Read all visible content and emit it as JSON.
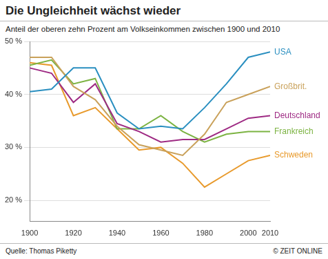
{
  "chart_data": {
    "type": "line",
    "title": "Die Ungleichheit wächst wieder",
    "subtitle": "Anteil der oberen zehn Prozent am Volkseinkommen zwischen 1900 und 2010",
    "source": "Quelle: Thomas Piketty",
    "credit": "© ZEIT ONLINE",
    "x": [
      1900,
      1910,
      1920,
      1930,
      1940,
      1950,
      1960,
      1970,
      1980,
      1990,
      2000,
      2010
    ],
    "xlim": [
      1900,
      2010
    ],
    "xticks": [
      1900,
      1920,
      1940,
      1960,
      1980,
      2000,
      2010
    ],
    "ylim": [
      16,
      50
    ],
    "yticks": [
      {
        "value": 20,
        "label": "20 %"
      },
      {
        "value": 30,
        "label": "30 %"
      },
      {
        "value": 40,
        "label": "40 %"
      },
      {
        "value": 50,
        "label": "50 %"
      }
    ],
    "grid": true,
    "series": [
      {
        "name": "USA",
        "color": "#2a8fc0",
        "values": [
          40.5,
          41,
          45,
          45,
          36.5,
          33.5,
          34,
          33.5,
          37.5,
          42,
          47,
          48
        ]
      },
      {
        "name": "Großbrit.",
        "color": "#c9a15a",
        "values": [
          47,
          47,
          41.5,
          39,
          34,
          30.5,
          29.5,
          28.5,
          32.5,
          38.5,
          40,
          41.5
        ]
      },
      {
        "name": "Deutschland",
        "color": "#9e2a83",
        "values": [
          45,
          44,
          38.5,
          42,
          34.5,
          33,
          31,
          31.5,
          31.5,
          33.5,
          35.5,
          36
        ]
      },
      {
        "name": "Frankreich",
        "color": "#7cb342",
        "values": [
          45.5,
          46.5,
          42,
          43,
          33.5,
          33.5,
          36,
          33,
          31,
          32.5,
          33,
          33
        ]
      },
      {
        "name": "Schweden",
        "color": "#e89a2c",
        "values": [
          46,
          45.5,
          36,
          37.5,
          33.5,
          29.5,
          30,
          27,
          22.5,
          25,
          27.5,
          28.5
        ]
      }
    ]
  }
}
